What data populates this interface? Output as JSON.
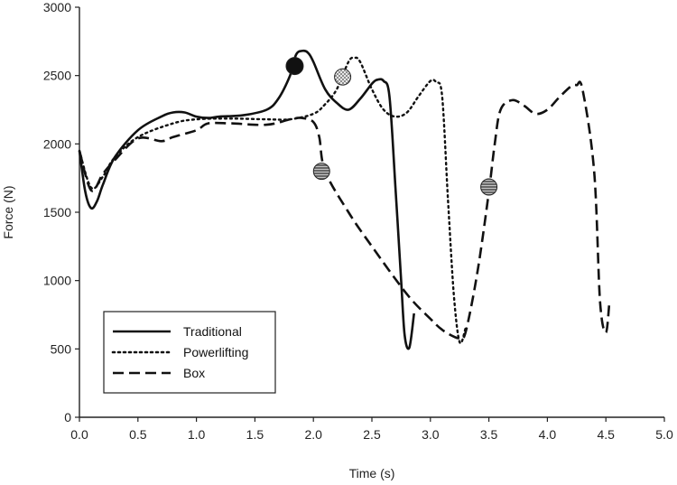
{
  "chart_data": {
    "type": "line",
    "title": "",
    "xlabel": "Time (s)",
    "ylabel": "Force (N)",
    "xlim": [
      0,
      5
    ],
    "ylim": [
      0,
      3000
    ],
    "x_ticks": [
      0,
      0.5,
      1,
      1.5,
      2,
      2.5,
      3,
      3.5,
      4,
      4.5,
      5
    ],
    "x_tick_labels": [
      "0.0",
      "0.5",
      "1.0",
      "1.5",
      "2.0",
      "2.5",
      "3.0",
      "3.5",
      "4.0",
      "4.5",
      "5.0"
    ],
    "y_ticks": [
      0,
      500,
      1000,
      1500,
      2000,
      2500,
      3000
    ],
    "y_tick_labels": [
      "0",
      "500",
      "1000",
      "1500",
      "2000",
      "2500",
      "3000"
    ],
    "grid": false,
    "legend_position": "bottom-left",
    "series": [
      {
        "name": "Traditional",
        "style": "solid",
        "x": [
          0,
          0.05,
          0.1,
          0.15,
          0.2,
          0.3,
          0.5,
          0.7,
          0.8,
          0.9,
          1.0,
          1.1,
          1.2,
          1.4,
          1.6,
          1.7,
          1.8,
          1.85,
          1.9,
          1.95,
          2.0,
          2.1,
          2.2,
          2.3,
          2.4,
          2.5,
          2.55,
          2.6,
          2.65,
          2.7,
          2.75,
          2.78,
          2.82,
          2.86
        ],
        "y": [
          1950,
          1650,
          1530,
          1580,
          1700,
          1900,
          2100,
          2200,
          2230,
          2230,
          2200,
          2190,
          2200,
          2210,
          2250,
          2330,
          2500,
          2650,
          2680,
          2670,
          2600,
          2400,
          2300,
          2250,
          2330,
          2440,
          2470,
          2460,
          2350,
          1700,
          1000,
          600,
          510,
          760
        ]
      },
      {
        "name": "Powerlifting",
        "style": "dotted",
        "x": [
          0,
          0.1,
          0.2,
          0.3,
          0.5,
          0.8,
          1.0,
          1.3,
          1.6,
          1.8,
          2.0,
          2.1,
          2.2,
          2.3,
          2.35,
          2.4,
          2.5,
          2.6,
          2.7,
          2.8,
          2.9,
          3.0,
          3.05,
          3.1,
          3.15,
          3.2,
          3.25,
          3.3
        ],
        "y": [
          1950,
          1680,
          1760,
          1900,
          2050,
          2150,
          2180,
          2185,
          2180,
          2180,
          2220,
          2290,
          2400,
          2600,
          2630,
          2600,
          2400,
          2250,
          2200,
          2230,
          2350,
          2460,
          2450,
          2350,
          1600,
          900,
          550,
          650
        ]
      },
      {
        "name": "Box",
        "style": "dashed",
        "x": [
          0,
          0.1,
          0.2,
          0.3,
          0.5,
          0.7,
          0.8,
          1.0,
          1.1,
          1.3,
          1.6,
          1.8,
          1.9,
          2.0,
          2.05,
          2.1,
          2.3,
          2.5,
          2.8,
          3.0,
          3.1,
          3.2,
          3.25,
          3.3,
          3.4,
          3.5,
          3.55,
          3.6,
          3.7,
          3.8,
          3.9,
          4.0,
          4.1,
          4.2,
          4.25,
          4.3,
          4.4,
          4.45,
          4.5,
          4.53
        ],
        "y": [
          1950,
          1660,
          1780,
          1880,
          2040,
          2020,
          2050,
          2100,
          2150,
          2150,
          2140,
          2180,
          2190,
          2160,
          2050,
          1800,
          1500,
          1250,
          900,
          720,
          640,
          590,
          580,
          620,
          1050,
          1650,
          2000,
          2250,
          2320,
          2280,
          2220,
          2250,
          2340,
          2420,
          2430,
          2400,
          1800,
          850,
          620,
          840
        ]
      }
    ],
    "markers": [
      {
        "series": "Traditional",
        "x": 1.84,
        "y": 2570,
        "fill": "#111111",
        "pattern": "solid"
      },
      {
        "series": "Powerlifting",
        "x": 2.25,
        "y": 2490,
        "fill": "#ffffff",
        "pattern": "crosshatch"
      },
      {
        "series": "Box",
        "x": 2.07,
        "y": 1800,
        "fill": "#555555",
        "pattern": "striped"
      },
      {
        "series": "Box",
        "x": 3.5,
        "y": 1685,
        "fill": "#555555",
        "pattern": "striped"
      }
    ]
  }
}
